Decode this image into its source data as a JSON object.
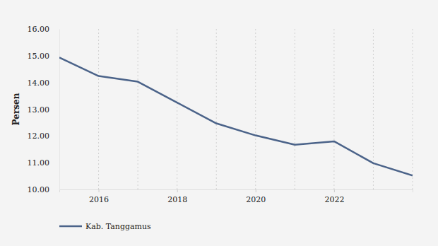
{
  "chart_data": {
    "type": "line",
    "y_label": "Persen",
    "x": [
      2015,
      2016,
      2017,
      2018,
      2019,
      2020,
      2021,
      2022,
      2023,
      2024
    ],
    "series": [
      {
        "name": "Kab. Tanggamus",
        "color": "#4b6389",
        "values": [
          14.93,
          14.24,
          14.03,
          13.25,
          12.47,
          12.02,
          11.67,
          11.8,
          10.98,
          10.52
        ]
      }
    ],
    "xlim": [
      2015,
      2024
    ],
    "xticks": [
      2016,
      2018,
      2020,
      2022
    ],
    "ylim": [
      10,
      16
    ],
    "yticks": [
      {
        "value": 10,
        "label": "10.00"
      },
      {
        "value": 11,
        "label": "11.00"
      },
      {
        "value": 12,
        "label": "12.00"
      },
      {
        "value": 13,
        "label": "13.00"
      },
      {
        "value": 14,
        "label": "14.00"
      },
      {
        "value": 15,
        "label": "15.00"
      },
      {
        "value": 16,
        "label": "16.00"
      }
    ],
    "grid": true,
    "legend": "bottom-left"
  }
}
